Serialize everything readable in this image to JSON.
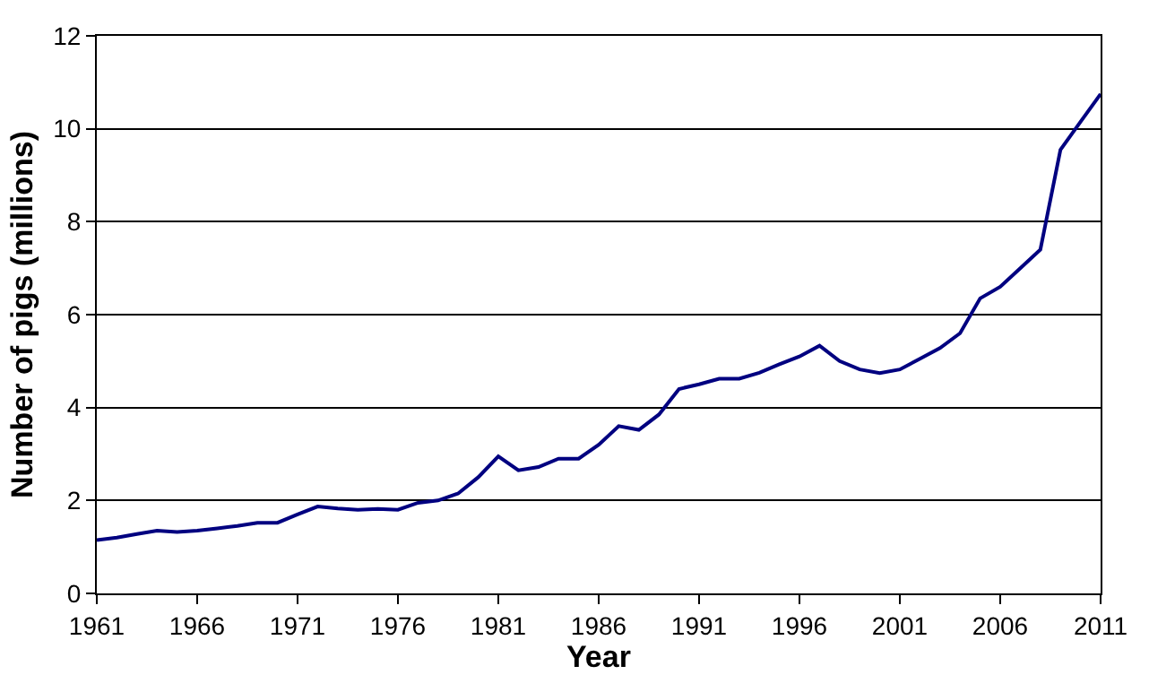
{
  "chart_data": {
    "type": "line",
    "xlabel": "Year",
    "ylabel": "Number of pigs (millions)",
    "x": [
      1961,
      1962,
      1963,
      1964,
      1965,
      1966,
      1967,
      1968,
      1969,
      1970,
      1971,
      1972,
      1973,
      1974,
      1975,
      1976,
      1977,
      1978,
      1979,
      1980,
      1981,
      1982,
      1983,
      1984,
      1985,
      1986,
      1987,
      1988,
      1989,
      1990,
      1991,
      1992,
      1993,
      1994,
      1995,
      1996,
      1997,
      1998,
      1999,
      2000,
      2001,
      2002,
      2003,
      2004,
      2005,
      2006,
      2007,
      2008,
      2009,
      2010,
      2011
    ],
    "series": [
      {
        "color": "#000080",
        "values": [
          1.15,
          1.2,
          1.28,
          1.35,
          1.32,
          1.35,
          1.4,
          1.45,
          1.52,
          1.52,
          1.7,
          1.87,
          1.83,
          1.8,
          1.82,
          1.8,
          1.95,
          2.0,
          2.15,
          2.5,
          2.95,
          2.65,
          2.72,
          2.9,
          2.9,
          3.2,
          3.6,
          3.52,
          3.85,
          4.4,
          4.5,
          4.62,
          4.62,
          4.75,
          4.93,
          5.1,
          5.33,
          5.0,
          4.82,
          4.74,
          4.82,
          5.05,
          5.28,
          5.6,
          6.35,
          6.6,
          7.0,
          7.4,
          9.55,
          10.15,
          10.75
        ]
      }
    ],
    "xlim": [
      1961,
      2011
    ],
    "xticks": [
      1961,
      1966,
      1971,
      1976,
      1981,
      1986,
      1991,
      1996,
      2001,
      2006,
      2011
    ],
    "ylim": [
      0,
      12
    ],
    "yticks": [
      0,
      2,
      4,
      6,
      8,
      10,
      12
    ],
    "grid": "y",
    "marker": "none",
    "line_style": "solid"
  }
}
